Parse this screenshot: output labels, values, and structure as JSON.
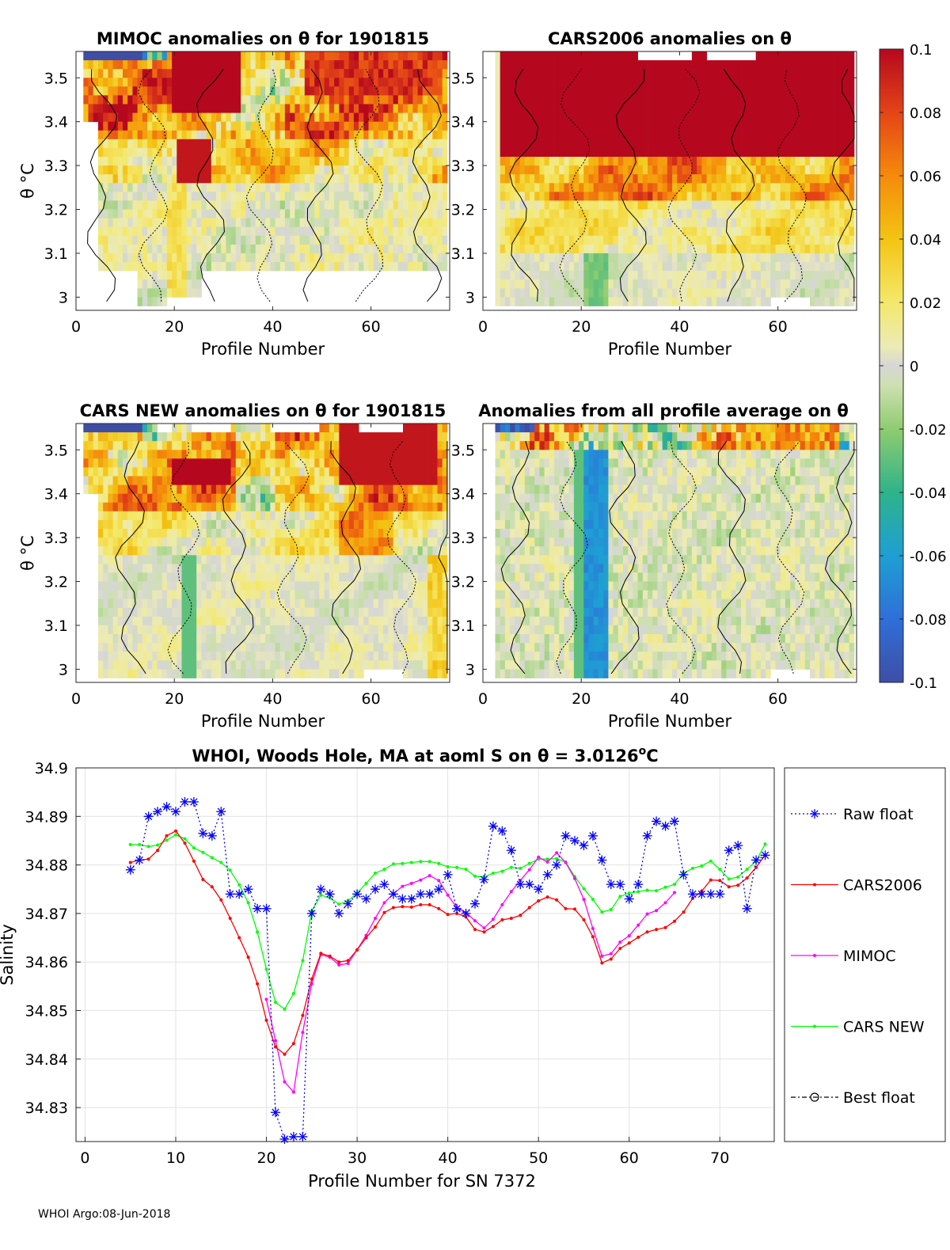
{
  "footer": "WHOI Argo:08-Jun-2018",
  "chart_data": [
    {
      "type": "heatmap",
      "panel_id": "mimoc",
      "title": "MIMOC anomalies on θ  for 1901815",
      "xlabel": "Profile Number",
      "ylabel": "θ °C",
      "xlim": [
        0,
        76
      ],
      "ylim": [
        2.97,
        3.56
      ],
      "xticks": [
        0,
        20,
        40,
        60
      ],
      "yticks": [
        3,
        3.1,
        3.2,
        3.3,
        3.4,
        3.5
      ],
      "warm_band_theta": [
        3.3,
        3.56
      ],
      "warm_band_profiles": [
        5,
        75
      ],
      "peak_profile_range": [
        19,
        33
      ],
      "missing_regions": "x 0-13 and 26-75 below θ=3.06; x 19-26 below θ=3.0",
      "cold_top_left_profiles": [
        2,
        13
      ]
    },
    {
      "type": "heatmap",
      "panel_id": "cars2006",
      "title": "CARS2006 anomalies on θ",
      "xlabel": "Profile Number",
      "ylabel": "",
      "xlim": [
        0,
        76
      ],
      "ylim": [
        2.97,
        3.56
      ],
      "xticks": [
        0,
        20,
        40,
        60
      ],
      "yticks": [
        3,
        3.1,
        3.2,
        3.3,
        3.4,
        3.5
      ],
      "warm_band_theta": [
        3.28,
        3.56
      ],
      "missing_regions": "top row x 32-43 and 46-56; bottom x 59-67 below θ=3.0"
    },
    {
      "type": "heatmap",
      "panel_id": "carsnew",
      "title": "CARS NEW anomalies on θ for 1901815",
      "xlabel": "Profile Number",
      "ylabel": "θ °C",
      "xlim": [
        0,
        76
      ],
      "ylim": [
        2.97,
        3.56
      ],
      "xticks": [
        0,
        20,
        40,
        60
      ],
      "yticks": [
        3,
        3.1,
        3.2,
        3.3,
        3.4,
        3.5
      ],
      "warm_band_theta": [
        3.35,
        3.56
      ],
      "missing_regions": "top row x 17-20, 24-32, 40-50, 58-67; bottom x 59-67 below θ=3.0"
    },
    {
      "type": "heatmap",
      "panel_id": "allavg",
      "title": "Anomalies from all profile average on θ",
      "xlabel": "Profile Number",
      "ylabel": "",
      "xlim": [
        0,
        76
      ],
      "ylim": [
        2.97,
        3.56
      ],
      "xticks": [
        0,
        20,
        40,
        60
      ],
      "yticks": [
        3,
        3.1,
        3.2,
        3.3,
        3.4,
        3.5
      ],
      "cold_column_profiles": [
        21,
        25
      ],
      "missing_regions": "bottom x 59-67 below θ=3.0"
    },
    {
      "type": "colorbar",
      "range": [
        -0.1,
        0.1
      ],
      "ticks": [
        "0.1",
        "0.08",
        "0.06",
        "0.04",
        "0.02",
        "0",
        "-0.02",
        "-0.04",
        "-0.06",
        "-0.08",
        "-0.1"
      ],
      "colormap": "parula-to-yellow-to-red (gray at 0)"
    },
    {
      "type": "line",
      "title_main": "WHOI, Woods Hole, MA at aoml S on θ = 3.0126",
      "title_theta": "θ",
      "title_unit_sup": "o",
      "title_unit": "C",
      "xlabel": "Profile Number for SN 7372",
      "ylabel": "Salinity",
      "xlim": [
        -1,
        76
      ],
      "ylim": [
        34.823,
        34.9
      ],
      "xticks": [
        0,
        10,
        20,
        30,
        40,
        50,
        60,
        70
      ],
      "yticks": [
        "34.9",
        "34.89",
        "34.88",
        "34.87",
        "34.86",
        "34.85",
        "34.84",
        "34.83"
      ],
      "grid": true,
      "legend": [
        {
          "label": "Raw float",
          "color": "#0000ff",
          "style": "dotted-star"
        },
        {
          "label": "CARS2006",
          "color": "#ff0000",
          "style": "solid-dot"
        },
        {
          "label": "MIMOC",
          "color": "#ff00ff",
          "style": "solid-dot"
        },
        {
          "label": "CARS NEW",
          "color": "#00ff00",
          "style": "solid-dot"
        },
        {
          "label": "Best float",
          "color": "#000000",
          "style": "dashdot-circle"
        }
      ],
      "series": [
        {
          "name": "Raw float",
          "x": [
            5,
            6,
            7,
            8,
            9,
            10,
            11,
            12,
            13,
            14,
            15,
            16,
            17,
            18,
            19,
            20,
            21,
            22,
            23,
            24,
            25,
            26,
            27,
            28,
            29,
            30,
            31,
            32,
            33,
            34,
            35,
            36,
            37,
            38,
            39,
            40,
            41,
            42,
            43,
            44,
            45,
            46,
            47,
            48,
            49,
            50,
            51,
            52,
            53,
            54,
            55,
            56,
            57,
            58,
            59,
            60,
            61,
            62,
            63,
            64,
            65,
            66,
            67,
            68,
            69,
            70,
            71,
            72,
            73,
            74,
            75
          ],
          "values": [
            34.879,
            34.881,
            34.89,
            34.891,
            34.892,
            34.891,
            34.893,
            34.893,
            34.8865,
            34.886,
            34.891,
            34.874,
            34.874,
            34.875,
            34.871,
            34.871,
            34.829,
            34.8235,
            34.824,
            34.824,
            34.87,
            34.875,
            34.874,
            34.87,
            34.872,
            34.874,
            34.873,
            34.875,
            34.876,
            34.874,
            34.873,
            34.873,
            34.874,
            34.874,
            34.875,
            34.878,
            34.871,
            34.87,
            34.872,
            34.877,
            34.888,
            34.887,
            34.883,
            34.876,
            34.876,
            34.875,
            34.878,
            34.88,
            34.886,
            34.885,
            34.884,
            34.886,
            34.881,
            34.876,
            34.876,
            34.873,
            34.876,
            34.886,
            34.889,
            34.888,
            34.889,
            34.878,
            34.874,
            34.874,
            34.874,
            34.874,
            34.883,
            34.884,
            34.871,
            34.881,
            34.882
          ]
        },
        {
          "name": "CARS2006",
          "x": [
            5,
            6,
            7,
            8,
            9,
            10,
            11,
            12,
            13,
            14,
            15,
            16,
            17,
            18,
            19,
            20,
            21,
            22,
            23,
            24,
            25,
            26,
            27,
            28,
            29,
            30,
            31,
            32,
            33,
            34,
            35,
            36,
            37,
            38,
            39,
            40,
            41,
            42,
            43,
            44,
            45,
            46,
            47,
            48,
            49,
            50,
            51,
            52,
            53,
            54,
            55,
            56,
            57,
            58,
            59,
            60,
            61,
            62,
            63,
            64,
            65,
            66,
            67,
            68,
            69,
            70,
            71,
            72,
            73,
            74,
            75
          ],
          "values": [
            34.8805,
            34.881,
            34.8812,
            34.883,
            34.886,
            34.887,
            34.8845,
            34.8808,
            34.877,
            34.8755,
            34.8728,
            34.869,
            34.865,
            34.861,
            34.8555,
            34.848,
            34.8425,
            34.841,
            34.8432,
            34.849,
            34.8565,
            34.8618,
            34.8612,
            34.86,
            34.8603,
            34.8625,
            34.865,
            34.8672,
            34.8702,
            34.8712,
            34.8714,
            34.8713,
            34.8718,
            34.8718,
            34.871,
            34.8698,
            34.87,
            34.8693,
            34.8667,
            34.8662,
            34.8673,
            34.8687,
            34.869,
            34.8696,
            34.8712,
            34.8726,
            34.8734,
            34.8728,
            34.871,
            34.8709,
            34.8687,
            34.8652,
            34.8598,
            34.8606,
            34.8628,
            34.8639,
            34.8651,
            34.8662,
            34.8667,
            34.8671,
            34.8684,
            34.8703,
            34.8731,
            34.8746,
            34.8769,
            34.8768,
            34.8755,
            34.8758,
            34.8773,
            34.8795,
            34.882
          ]
        },
        {
          "name": "MIMOC",
          "x": [
            20,
            21,
            22,
            23,
            24,
            25,
            26,
            27,
            28,
            29,
            30,
            31,
            32,
            33,
            34,
            35,
            36,
            37,
            38,
            39,
            40,
            41,
            42,
            43,
            44,
            45,
            46,
            47,
            48,
            49,
            50,
            51,
            52,
            53,
            54,
            55,
            56,
            57,
            58,
            59,
            60,
            61,
            62,
            63,
            64,
            65
          ],
          "values": [
            34.8523,
            34.8438,
            34.8353,
            34.8332,
            34.8455,
            34.8555,
            34.8615,
            34.861,
            34.8594,
            34.8597,
            34.8625,
            34.8655,
            34.869,
            34.8722,
            34.8741,
            34.8756,
            34.8762,
            34.8769,
            34.8778,
            34.8768,
            34.8738,
            34.8712,
            34.8702,
            34.8685,
            34.867,
            34.8688,
            34.8718,
            34.8745,
            34.8768,
            34.879,
            34.8816,
            34.8806,
            34.8825,
            34.8805,
            34.8772,
            34.8729,
            34.8669,
            34.8612,
            34.8617,
            34.8641,
            34.8654,
            34.8676,
            34.8699,
            34.8706,
            34.8722,
            34.8743
          ]
        },
        {
          "name": "CARS NEW",
          "x": [
            5,
            6,
            7,
            8,
            9,
            10,
            11,
            12,
            13,
            14,
            15,
            16,
            17,
            18,
            19,
            20,
            21,
            22,
            23,
            24,
            25,
            26,
            27,
            28,
            29,
            30,
            31,
            32,
            33,
            34,
            35,
            36,
            37,
            38,
            39,
            40,
            41,
            42,
            43,
            44,
            45,
            46,
            47,
            48,
            49,
            50,
            51,
            52,
            53,
            54,
            55,
            56,
            57,
            58,
            59,
            60,
            61,
            62,
            63,
            64,
            65,
            66,
            67,
            68,
            69,
            70,
            71,
            72,
            73,
            74,
            75
          ],
          "values": [
            34.8842,
            34.8842,
            34.8838,
            34.8841,
            34.8851,
            34.8862,
            34.8854,
            34.8835,
            34.8826,
            34.8815,
            34.8805,
            34.8789,
            34.8759,
            34.8722,
            34.8662,
            34.8585,
            34.8517,
            34.8503,
            34.8535,
            34.8603,
            34.8705,
            34.8738,
            34.8732,
            34.8719,
            34.8726,
            34.8742,
            34.8762,
            34.8783,
            34.8791,
            34.8802,
            34.8803,
            34.8805,
            34.8807,
            34.8807,
            34.8803,
            34.8796,
            34.8795,
            34.8791,
            34.8777,
            34.8775,
            34.8783,
            34.8787,
            34.8795,
            34.8793,
            34.8803,
            34.8812,
            34.8812,
            34.8813,
            34.8806,
            34.8776,
            34.8751,
            34.8729,
            34.8703,
            34.8708,
            34.8735,
            34.8742,
            34.8745,
            34.8748,
            34.8747,
            34.8754,
            34.876,
            34.8783,
            34.8793,
            34.8798,
            34.8808,
            34.8791,
            34.8771,
            34.8775,
            34.8791,
            34.8808,
            34.8843
          ]
        }
      ]
    }
  ]
}
